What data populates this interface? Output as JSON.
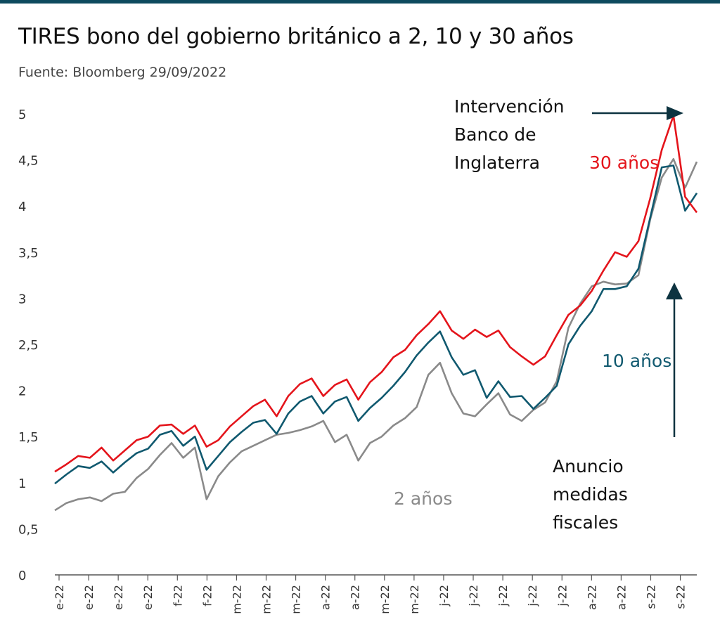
{
  "header": {
    "title": "TIRES bono del gobierno británico a 2, 10 y 30 años",
    "subtitle": "Fuente: Bloomberg 29/09/2022"
  },
  "annotations": {
    "boe_lines": [
      "Intervención",
      "Banco de",
      "Inglaterra"
    ],
    "fiscal_lines": [
      "Anuncio",
      "medidas",
      "fiscales"
    ]
  },
  "colors": {
    "y30": "#e4141b",
    "y10": "#10596f",
    "y2": "#8a8a8a",
    "axis": "#555555",
    "top_rule": "#0e4a5e"
  },
  "chart_data": {
    "type": "line",
    "x_label_format": "mes-22",
    "x_ticks": [
      "e-22",
      "e-22",
      "e-22",
      "e-22",
      "f-22",
      "f-22",
      "m-22",
      "m-22",
      "m-22",
      "a-22",
      "a-22",
      "m-22",
      "m-22",
      "j-22",
      "j-22",
      "j-22",
      "j-22",
      "j-22",
      "a-22",
      "a-22",
      "s-22",
      "s-22"
    ],
    "ylim": [
      0,
      5
    ],
    "yticks": [
      "0",
      "0,5",
      "1",
      "1,5",
      "2",
      "2,5",
      "3",
      "3,5",
      "4",
      "4,5",
      "5"
    ],
    "grid": false,
    "series": [
      {
        "name": "30 años",
        "color_key": "y30",
        "values": [
          1.12,
          1.2,
          1.29,
          1.27,
          1.38,
          1.24,
          1.35,
          1.46,
          1.5,
          1.62,
          1.63,
          1.53,
          1.62,
          1.39,
          1.46,
          1.61,
          1.72,
          1.83,
          1.9,
          1.72,
          1.94,
          2.07,
          2.13,
          1.94,
          2.06,
          2.12,
          1.9,
          2.09,
          2.2,
          2.36,
          2.44,
          2.6,
          2.72,
          2.86,
          2.65,
          2.56,
          2.66,
          2.58,
          2.65,
          2.47,
          2.37,
          2.28,
          2.37,
          2.6,
          2.82,
          2.92,
          3.08,
          3.3,
          3.5,
          3.45,
          3.62,
          4.08,
          4.61,
          4.98,
          4.1,
          3.93
        ]
      },
      {
        "name": "10 años",
        "color_key": "y10",
        "values": [
          0.99,
          1.09,
          1.18,
          1.16,
          1.23,
          1.11,
          1.22,
          1.32,
          1.37,
          1.52,
          1.56,
          1.4,
          1.5,
          1.14,
          1.29,
          1.44,
          1.55,
          1.65,
          1.68,
          1.53,
          1.75,
          1.88,
          1.94,
          1.75,
          1.88,
          1.93,
          1.67,
          1.81,
          1.92,
          2.05,
          2.2,
          2.38,
          2.52,
          2.64,
          2.36,
          2.17,
          2.22,
          1.92,
          2.1,
          1.93,
          1.94,
          1.8,
          1.92,
          2.05,
          2.5,
          2.7,
          2.86,
          3.1,
          3.1,
          3.13,
          3.32,
          3.87,
          4.42,
          4.44,
          3.95,
          4.14
        ]
      },
      {
        "name": "2 años",
        "color_key": "y2",
        "values": [
          0.7,
          0.78,
          0.82,
          0.84,
          0.8,
          0.88,
          0.9,
          1.05,
          1.15,
          1.3,
          1.43,
          1.27,
          1.38,
          0.82,
          1.07,
          1.22,
          1.34,
          1.4,
          1.46,
          1.52,
          1.54,
          1.57,
          1.61,
          1.67,
          1.44,
          1.52,
          1.24,
          1.43,
          1.5,
          1.62,
          1.7,
          1.82,
          2.17,
          2.3,
          1.97,
          1.75,
          1.72,
          1.85,
          1.97,
          1.74,
          1.67,
          1.79,
          1.87,
          2.1,
          2.68,
          2.94,
          3.13,
          3.18,
          3.15,
          3.16,
          3.25,
          3.85,
          4.31,
          4.51,
          4.2,
          4.48
        ]
      }
    ],
    "series_labels": [
      {
        "text": "30 años",
        "series": "30 años"
      },
      {
        "text": "10 años",
        "series": "10 años"
      },
      {
        "text": "2 años",
        "series": "2 años"
      }
    ]
  }
}
